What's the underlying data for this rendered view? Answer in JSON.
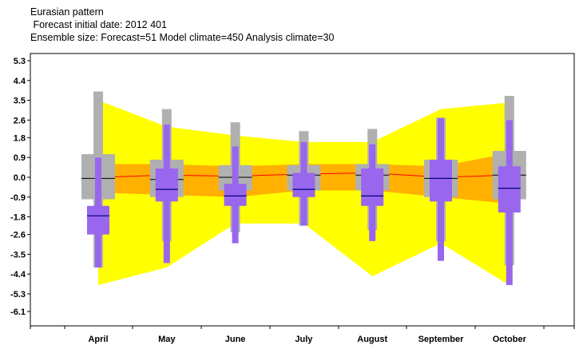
{
  "titles": {
    "line1": "Eurasian pattern",
    "line2": " Forecast initial date: 2012 401",
    "line3": "Ensemble size: Forecast=51 Model climate=450 Analysis climate=30"
  },
  "chart_data": {
    "type": "box",
    "title": "Eurasian pattern",
    "subtitle": "Forecast initial date: 2012 401 / Ensemble size: Forecast=51 Model climate=450 Analysis climate=30",
    "categories": [
      "April",
      "May",
      "June",
      "July",
      "August",
      "September",
      "October"
    ],
    "yticks": [
      "5.3",
      "4.4",
      "3.5",
      "2.6",
      "1.8",
      "0.9",
      "0.0",
      "-0.9",
      "-1.8",
      "-2.6",
      "-3.5",
      "-4.4",
      "-5.3",
      "-6.1"
    ],
    "ylim": [
      -6.9,
      5.6
    ],
    "colors": {
      "model_climate_outer": "#ffff00",
      "model_climate_inner": "#ffb000",
      "model_climate_median": "#ff0000",
      "analysis_climate": "#b0b0b0",
      "forecast": "#9966ee",
      "forecast_median": "#000080"
    },
    "model_climate": {
      "min": [
        -4.9,
        -4.1,
        -2.1,
        -2.1,
        -4.5,
        -3.0,
        -4.9
      ],
      "q25": [
        -0.7,
        -0.8,
        -0.9,
        -0.6,
        -0.6,
        -0.9,
        -1.2
      ],
      "median": [
        0.0,
        0.1,
        0.05,
        0.15,
        0.2,
        0.0,
        0.1
      ],
      "q75": [
        0.6,
        0.6,
        0.5,
        0.6,
        0.6,
        0.5,
        1.1
      ],
      "max": [
        3.5,
        2.3,
        1.9,
        1.6,
        1.6,
        3.1,
        3.4
      ]
    },
    "analysis_climate": {
      "min": [
        -4.1,
        -2.9,
        -2.5,
        -2.2,
        -2.4,
        -2.9,
        -4.0
      ],
      "q25": [
        -1.0,
        -0.9,
        -0.6,
        -0.6,
        -0.6,
        -0.9,
        -1.0
      ],
      "median": [
        -0.05,
        -0.1,
        0.0,
        0.1,
        0.1,
        -0.05,
        0.1
      ],
      "q75": [
        1.05,
        0.8,
        0.55,
        0.55,
        0.6,
        0.8,
        1.2
      ],
      "max": [
        3.9,
        3.1,
        2.5,
        2.1,
        2.2,
        2.7,
        3.7
      ]
    },
    "forecast": {
      "min": [
        -4.1,
        -3.9,
        -3.0,
        -2.2,
        -2.9,
        -3.8,
        -4.9
      ],
      "q25": [
        -2.6,
        -1.1,
        -1.3,
        -0.9,
        -1.3,
        -1.1,
        -1.6
      ],
      "median": [
        -1.75,
        -0.55,
        -0.85,
        -0.55,
        -0.85,
        -0.05,
        -0.5
      ],
      "q75": [
        -1.3,
        0.4,
        -0.3,
        0.2,
        0.4,
        0.8,
        0.5
      ],
      "max": [
        0.9,
        2.4,
        1.4,
        1.6,
        1.5,
        2.7,
        2.6
      ]
    }
  }
}
